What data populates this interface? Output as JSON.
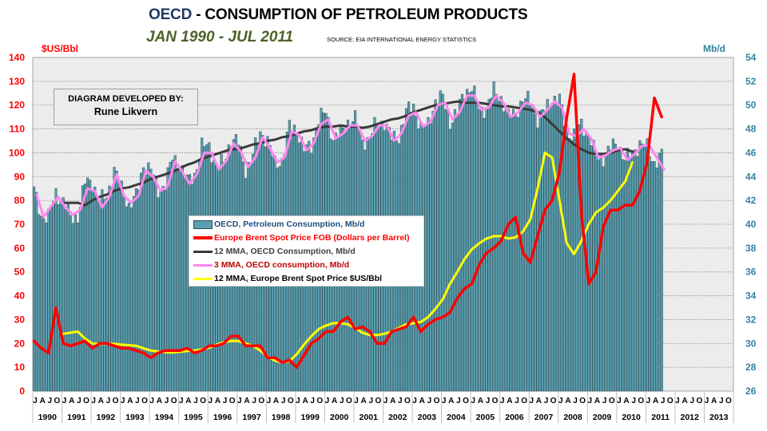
{
  "header": {
    "title_prefix": "OECD",
    "title_rest": " - CONSUMPTION OF PETROLEUM PRODUCTS",
    "subtitle": "JAN 1990 - JUL 2011",
    "source": "SOURCE: EIA INTERNATIONAL ENERGY STATISTICS"
  },
  "annotation": {
    "line1": "DIAGRAM DEVELOPED BY:",
    "line2": "Rune Likvern"
  },
  "colors": {
    "bars": "#5b9fb0",
    "bar_edge": "#2f4f58",
    "brent": "#ff0000",
    "oecd_12mma": "#3a3a3a",
    "oecd_3mma": "#ff88ee",
    "brent_12mma": "#ffff00",
    "left_axis": "#ff0000",
    "right_axis": "#31859c",
    "plot_bg": "#ececec"
  },
  "chart_data": {
    "type": "bar+line",
    "title": "OECD - CONSUMPTION OF PETROLEUM PRODUCTS",
    "subtitle": "JAN 1990 - JUL 2011",
    "ylabel_left": "$US/Bbl",
    "ylabel_right": "Mb/d",
    "ylim_left": [
      0,
      140
    ],
    "ylim_right": [
      26,
      54
    ],
    "yticks_left": [
      "0",
      "10",
      "20",
      "30",
      "40",
      "50",
      "60",
      "70",
      "80",
      "90",
      "100",
      "110",
      "120",
      "130",
      "140"
    ],
    "yticks_right": [
      "26",
      "28",
      "30",
      "32",
      "34",
      "36",
      "38",
      "40",
      "42",
      "44",
      "46",
      "48",
      "50",
      "52",
      "54"
    ],
    "x_month_letters": [
      "J",
      "A",
      "J",
      "O"
    ],
    "x_years": [
      "1990",
      "1991",
      "1992",
      "1993",
      "1994",
      "1995",
      "1996",
      "1997",
      "1998",
      "1999",
      "2000",
      "2001",
      "2002",
      "2003",
      "2004",
      "2005",
      "2006",
      "2007",
      "2008",
      "2009",
      "2010",
      "2011",
      "2012",
      "2013"
    ],
    "grid": true,
    "legend_position": "center-left",
    "x_note": "monthly from Jan 1990; values below are sampled every 3 months (Jan, Apr, Jul, Oct) and interpolated",
    "series": [
      {
        "name": "OECD, Petroleum Consumption, Mb/d",
        "type": "bar",
        "axis": "right",
        "start": "1990-01",
        "step_months": 3,
        "values": [
          42.8,
          40.7,
          40.6,
          42.6,
          42.0,
          40.5,
          40.7,
          43.5,
          43.6,
          41.9,
          42.4,
          44.6,
          43.0,
          41.6,
          42.3,
          45.0,
          44.6,
          42.8,
          43.4,
          45.6,
          45.0,
          43.6,
          44.2,
          46.5,
          46.6,
          44.8,
          45.2,
          47.2,
          46.8,
          44.6,
          45.8,
          47.8,
          47.0,
          45.1,
          45.4,
          48.2,
          48.0,
          46.2,
          46.6,
          48.8,
          49.4,
          47.2,
          47.6,
          48.6,
          48.8,
          47.0,
          47.2,
          48.6,
          48.6,
          47.2,
          47.4,
          49.4,
          50.0,
          48.0,
          48.4,
          50.4,
          50.6,
          48.6,
          49.4,
          51.2,
          51.4,
          49.6,
          49.8,
          51.2,
          50.6,
          49.0,
          49.4,
          50.4,
          50.4,
          48.8,
          49.6,
          50.6,
          50.4,
          47.8,
          47.4,
          48.4,
          47.6,
          45.6,
          45.6,
          46.4,
          46.8,
          45.4,
          46.0,
          46.8,
          46.4,
          45.2,
          45.8
        ]
      },
      {
        "name": "Europe Brent Spot Price FOB (Dollars per Barrel)",
        "type": "line",
        "axis": "left",
        "start": "1990-01",
        "step_months": 3,
        "values": [
          21,
          18,
          16,
          35,
          20,
          19,
          20,
          21,
          18,
          20,
          20,
          19,
          18,
          18,
          17,
          16,
          14,
          16,
          17,
          17,
          17,
          18,
          16,
          17,
          19,
          19,
          20,
          23,
          23,
          19,
          19,
          19,
          14,
          14,
          12,
          13,
          10,
          15,
          20,
          22,
          25,
          25,
          29,
          31,
          26,
          27,
          25,
          20,
          20,
          25,
          26,
          27,
          31,
          25,
          28,
          30,
          31,
          33,
          39,
          43,
          45,
          53,
          58,
          60,
          63,
          70,
          73,
          58,
          54,
          65,
          76,
          80,
          92,
          115,
          133,
          75,
          45,
          50,
          69,
          76,
          76,
          78,
          78,
          84,
          96,
          123,
          115
        ]
      },
      {
        "name": "12 MMA, OECD Consumption, Mb/d",
        "type": "line",
        "axis": "right",
        "start": "1991-01",
        "step_months": 3,
        "values": [
          41.8,
          41.8,
          41.8,
          41.6,
          42.0,
          42.3,
          42.5,
          42.8,
          43.0,
          43.1,
          43.3,
          43.5,
          43.8,
          44.0,
          44.2,
          44.4,
          44.7,
          45.0,
          45.2,
          45.5,
          45.7,
          45.9,
          46.1,
          46.3,
          46.3,
          46.5,
          46.7,
          46.8,
          47.0,
          47.1,
          47.3,
          47.4,
          47.6,
          47.8,
          47.9,
          48.1,
          48.2,
          48.2,
          48.3,
          48.2,
          48.2,
          48.1,
          48.2,
          48.4,
          48.6,
          48.8,
          48.9,
          49.1,
          49.4,
          49.6,
          49.8,
          50.0,
          50.1,
          50.2,
          50.3,
          50.2,
          50.2,
          50.2,
          50.1,
          50.0,
          49.9,
          49.9,
          49.8,
          49.7,
          49.6,
          49.4,
          49.0,
          48.4,
          47.8,
          47.2,
          46.7,
          46.3,
          46.0,
          45.9,
          45.9,
          46.0,
          46.2,
          46.3,
          46.1
        ]
      },
      {
        "name": "3 MMA, OECD consumption, Mb/d",
        "type": "line",
        "axis": "right",
        "start": "1990-02",
        "step_months": 3,
        "values": [
          42.5,
          40.6,
          41.5,
          42.3,
          41.4,
          40.8,
          41.2,
          43.0,
          42.8,
          41.4,
          42.3,
          44.2,
          42.4,
          41.8,
          42.4,
          44.5,
          44.0,
          42.8,
          43.2,
          45.3,
          44.4,
          43.4,
          44.2,
          46.0,
          46.0,
          44.6,
          45.3,
          46.8,
          46.1,
          44.8,
          45.6,
          47.3,
          46.4,
          45.2,
          45.6,
          47.8,
          47.5,
          46.2,
          46.8,
          48.4,
          48.8,
          47.2,
          47.6,
          48.3,
          48.3,
          47.0,
          47.4,
          48.3,
          48.3,
          47.0,
          47.6,
          49.1,
          49.4,
          48.2,
          48.6,
          50.0,
          50.2,
          48.8,
          49.4,
          50.8,
          50.8,
          49.6,
          49.8,
          50.8,
          50.2,
          49.0,
          49.4,
          50.2,
          50.0,
          49.0,
          49.6,
          50.3,
          49.8,
          47.6,
          47.4,
          48.0,
          47.2,
          45.6,
          45.8,
          46.2,
          46.4,
          45.4,
          45.9,
          46.6,
          46.6,
          45.6,
          44.6
        ]
      },
      {
        "name": "12 MMA, Europe Brent Spot Price $US/Bbl",
        "type": "line",
        "axis": "left",
        "start": "1991-01",
        "step_months": 3,
        "values": [
          24,
          24.5,
          25,
          22,
          20,
          19.8,
          19.8,
          19.8,
          19.5,
          19.3,
          19.0,
          18.0,
          17.0,
          16.6,
          16.3,
          16.2,
          16.5,
          16.8,
          17.0,
          17.5,
          18.2,
          19.5,
          20.5,
          21.0,
          21.0,
          20.0,
          19.0,
          17.0,
          14.5,
          12.8,
          12.0,
          12.5,
          15.5,
          19.5,
          23.0,
          26.0,
          27.5,
          28.5,
          28.5,
          28.0,
          26.5,
          24.5,
          23.5,
          23.5,
          24.0,
          25.0,
          26.5,
          28.0,
          28.5,
          29.0,
          31.0,
          34.5,
          38.5,
          45.0,
          50.0,
          55.5,
          59.5,
          62.0,
          64.0,
          65.0,
          65.0,
          64.0,
          64.5,
          67.0,
          72.0,
          85.0,
          100.0,
          98.0,
          80.0,
          62.0,
          57.5,
          63.0,
          70.0,
          75.0,
          77.0,
          80.0,
          84.0,
          88.0,
          96.0
        ]
      }
    ]
  },
  "legend": {
    "items": [
      {
        "label": "OECD, Petroleum Consumption, Mb/d",
        "color": "#1f4e79"
      },
      {
        "label": "Europe Brent Spot Price FOB (Dollars per Barrel)",
        "color": "#ff0000"
      },
      {
        "label": "12 MMA, OECD Consumption, Mb/d",
        "color": "#404040"
      },
      {
        "label": "3 MMA, OECD consumption, Mb/d",
        "color": "#c00000"
      },
      {
        "label": "12 MMA, Europe Brent Spot Price $US/Bbl",
        "color": "#000000"
      }
    ]
  }
}
